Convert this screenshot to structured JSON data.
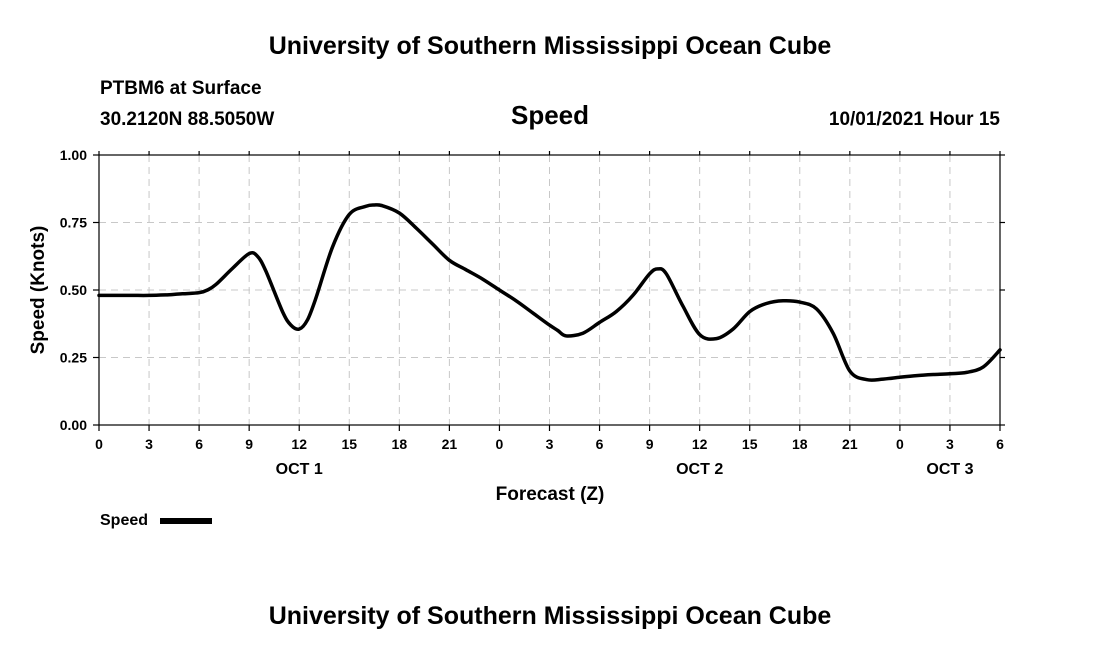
{
  "header": {
    "title": "University of Southern Mississippi Ocean Cube",
    "footer_title": "University of Southern Mississippi Ocean Cube",
    "station": "PTBM6 at Surface",
    "coordinates": "30.2120N  88.5050W",
    "timestamp": "10/01/2021 Hour 15"
  },
  "chart_data": {
    "type": "line",
    "title": "Speed",
    "xlabel": "Forecast (Z)",
    "ylabel": "Speed (Knots)",
    "x_unit": "hours from 2021-10-01 00Z",
    "xlim": [
      0,
      54
    ],
    "ylim": [
      0,
      1.0
    ],
    "yticks": [
      0.0,
      0.25,
      0.5,
      0.75,
      1.0
    ],
    "ytick_labels": [
      "0.00",
      "0.25",
      "0.50",
      "0.75",
      "1.00"
    ],
    "xticks": [
      0,
      3,
      6,
      9,
      12,
      15,
      18,
      21,
      24,
      27,
      30,
      33,
      36,
      39,
      42,
      45,
      48,
      51,
      54
    ],
    "xtick_labels": [
      "0",
      "3",
      "6",
      "9",
      "12",
      "15",
      "18",
      "21",
      "0",
      "3",
      "6",
      "9",
      "12",
      "15",
      "18",
      "21",
      "0",
      "3",
      "6"
    ],
    "date_labels": [
      {
        "label": "OCT 1",
        "x": 12
      },
      {
        "label": "OCT 2",
        "x": 36
      },
      {
        "label": "OCT 3",
        "x": 51
      }
    ],
    "grid": true,
    "legend": "bottom-left",
    "series": [
      {
        "name": "Speed",
        "color": "#000000",
        "x": [
          0,
          1,
          2,
          3,
          4,
          5,
          6,
          6.5,
          7,
          8,
          9,
          9.5,
          10,
          11,
          11.5,
          12,
          12.5,
          13,
          14,
          15,
          16,
          16.5,
          17,
          18,
          19,
          20,
          21,
          22,
          23,
          24,
          25,
          26,
          27,
          27.5,
          28,
          29,
          30,
          31,
          32,
          33,
          33.5,
          34,
          35,
          36,
          37,
          38,
          39,
          40,
          41,
          42,
          43,
          44,
          45,
          46,
          47,
          48,
          49,
          50,
          51,
          52,
          53,
          54
        ],
        "values": [
          0.48,
          0.48,
          0.48,
          0.48,
          0.482,
          0.486,
          0.49,
          0.5,
          0.52,
          0.58,
          0.635,
          0.625,
          0.57,
          0.42,
          0.37,
          0.355,
          0.39,
          0.47,
          0.66,
          0.78,
          0.81,
          0.815,
          0.812,
          0.785,
          0.73,
          0.67,
          0.61,
          0.575,
          0.54,
          0.5,
          0.46,
          0.415,
          0.37,
          0.35,
          0.33,
          0.34,
          0.38,
          0.42,
          0.48,
          0.56,
          0.578,
          0.56,
          0.44,
          0.335,
          0.32,
          0.355,
          0.42,
          0.45,
          0.46,
          0.455,
          0.43,
          0.34,
          0.2,
          0.168,
          0.17,
          0.177,
          0.183,
          0.187,
          0.19,
          0.195,
          0.215,
          0.278
        ]
      }
    ]
  }
}
